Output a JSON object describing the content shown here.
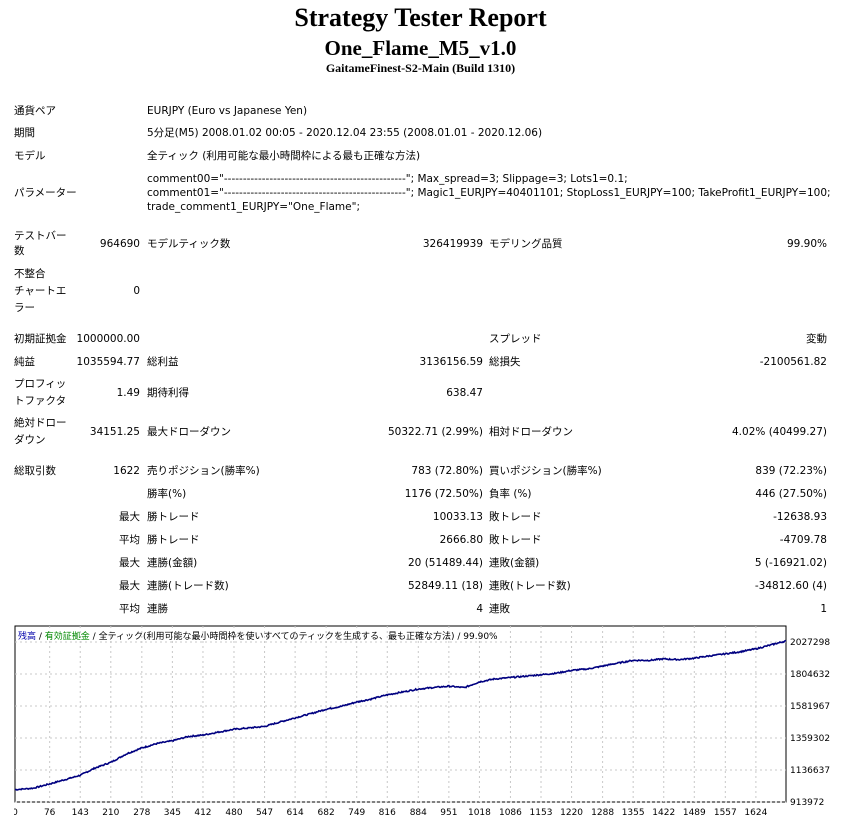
{
  "header": {
    "title": "Strategy Tester Report",
    "ea_name": "One_Flame_M5_v1.0",
    "server": "GaitameFinest-S2-Main (Build 1310)"
  },
  "info": {
    "symbol_label": "通貨ペア",
    "symbol_value": "EURJPY (Euro vs Japanese Yen)",
    "period_label": "期間",
    "period_value": "5分足(M5) 2008.01.02 00:05 - 2020.12.04 23:55 (2008.01.01 - 2020.12.06)",
    "model_label": "モデル",
    "model_value": "全ティック (利用可能な最小時間枠による最も正確な方法)",
    "params_label": "パラメーター",
    "params_lines": [
      "comment00=\"------------------------------------------------\"; Max_spread=3; Slippage=3; Lots1=0.1;",
      "comment01=\"------------------------------------------------\"; Magic1_EURJPY=40401101; StopLoss1_EURJPY=100; TakeProfit1_EURJPY=100;",
      "trade_comment1_EURJPY=\"One_Flame\";"
    ]
  },
  "stats": {
    "bars_label_1": "テストバー",
    "bars_label_2": "数",
    "bars_value": "964690",
    "ticks_label": "モデルティック数",
    "ticks_value": "326419939",
    "quality_label": "モデリング品質",
    "quality_value": "99.90%",
    "mismatch_label_1": "不整合",
    "mismatch_label_2": "チャートエ",
    "mismatch_label_3": "ラー",
    "mismatch_value": "0",
    "deposit_label": "初期証拠金",
    "deposit_value": "1000000.00",
    "spread_label": "スプレッド",
    "spread_value": "変動",
    "net_label": "純益",
    "net_value": "1035594.77",
    "gross_profit_label": "総利益",
    "gross_profit_value": "3136156.59",
    "gross_loss_label": "総損失",
    "gross_loss_value": "-2100561.82",
    "pf_label_1": "プロフィッ",
    "pf_label_2": "トファクタ",
    "pf_value": "1.49",
    "payoff_label": "期待利得",
    "payoff_value": "638.47",
    "abs_dd_label_1": "絶対ドロー",
    "abs_dd_label_2": "ダウン",
    "abs_dd_value": "34151.25",
    "max_dd_label": "最大ドローダウン",
    "max_dd_value": "50322.71 (2.99%)",
    "rel_dd_label": "相対ドローダウン",
    "rel_dd_value": "4.02% (40499.27)",
    "trades_label": "総取引数",
    "trades_value": "1622",
    "short_label": "売りポジション(勝率%)",
    "short_value": "783 (72.80%)",
    "long_label": "買いポジション(勝率%)",
    "long_value": "839 (72.23%)",
    "win_rate_label": "勝率(%)",
    "win_rate_value": "1176 (72.50%)",
    "loss_rate_label": "負率 (%)",
    "loss_rate_value": "446 (27.50%)",
    "max_word": "最大",
    "avg_word": "平均",
    "win_trade_label": "勝トレード",
    "loss_trade_label": "敗トレード",
    "max_win_value": "10033.13",
    "max_loss_value": "-12638.93",
    "avg_win_value": "2666.80",
    "avg_loss_value": "-4709.78",
    "consec_win_money_label": "連勝(金額)",
    "consec_win_money_value": "20 (51489.44)",
    "consec_loss_money_label": "連敗(金額)",
    "consec_loss_money_value": "5 (-16921.02)",
    "consec_win_trades_label": "連勝(トレード数)",
    "consec_win_trades_value": "52849.11 (18)",
    "consec_loss_trades_label": "連敗(トレード数)",
    "consec_loss_trades_value": "-34812.60 (4)",
    "avg_consec_win_label": "連勝",
    "avg_consec_win_value": "4",
    "avg_consec_loss_label": "連敗",
    "avg_consec_loss_value": "1"
  },
  "chart_data": {
    "type": "line",
    "legend_balance": "残高",
    "legend_equity": "有効証拠金",
    "legend_model": "全ティック(利用可能な最小時間枠を使いすべてのティックを生成する、最も正確な方法)",
    "legend_quality": "99.90%",
    "legend_separator": " / ",
    "x_ticks": [
      "0",
      "76",
      "143",
      "210",
      "278",
      "345",
      "412",
      "480",
      "547",
      "614",
      "682",
      "749",
      "816",
      "884",
      "951",
      "1018",
      "1086",
      "1153",
      "1220",
      "1288",
      "1355",
      "1422",
      "1489",
      "1557",
      "1624"
    ],
    "y_ticks": [
      "2027298",
      "1804632",
      "1581967",
      "1359302",
      "1136637",
      "913972"
    ],
    "ylim": [
      913972,
      2139000
    ],
    "xlim": [
      0,
      1690
    ],
    "line_color": "#000080",
    "x": [
      0,
      40,
      76,
      110,
      143,
      175,
      210,
      245,
      278,
      310,
      345,
      380,
      412,
      445,
      480,
      515,
      547,
      580,
      614,
      650,
      682,
      715,
      749,
      780,
      816,
      850,
      884,
      915,
      951,
      985,
      1018,
      1050,
      1086,
      1120,
      1153,
      1185,
      1220,
      1255,
      1288,
      1320,
      1355,
      1390,
      1422,
      1455,
      1489,
      1520,
      1557,
      1590,
      1624,
      1660,
      1690
    ],
    "y": [
      1000000,
      1010000,
      1040000,
      1070000,
      1100000,
      1150000,
      1190000,
      1250000,
      1290000,
      1320000,
      1340000,
      1370000,
      1380000,
      1400000,
      1420000,
      1430000,
      1440000,
      1470000,
      1500000,
      1530000,
      1560000,
      1580000,
      1610000,
      1630000,
      1660000,
      1680000,
      1700000,
      1710000,
      1720000,
      1710000,
      1750000,
      1770000,
      1780000,
      1790000,
      1800000,
      1810000,
      1830000,
      1840000,
      1860000,
      1880000,
      1900000,
      1900000,
      1910000,
      1905000,
      1915000,
      1930000,
      1945000,
      1960000,
      1980000,
      2010000,
      2035000
    ]
  }
}
